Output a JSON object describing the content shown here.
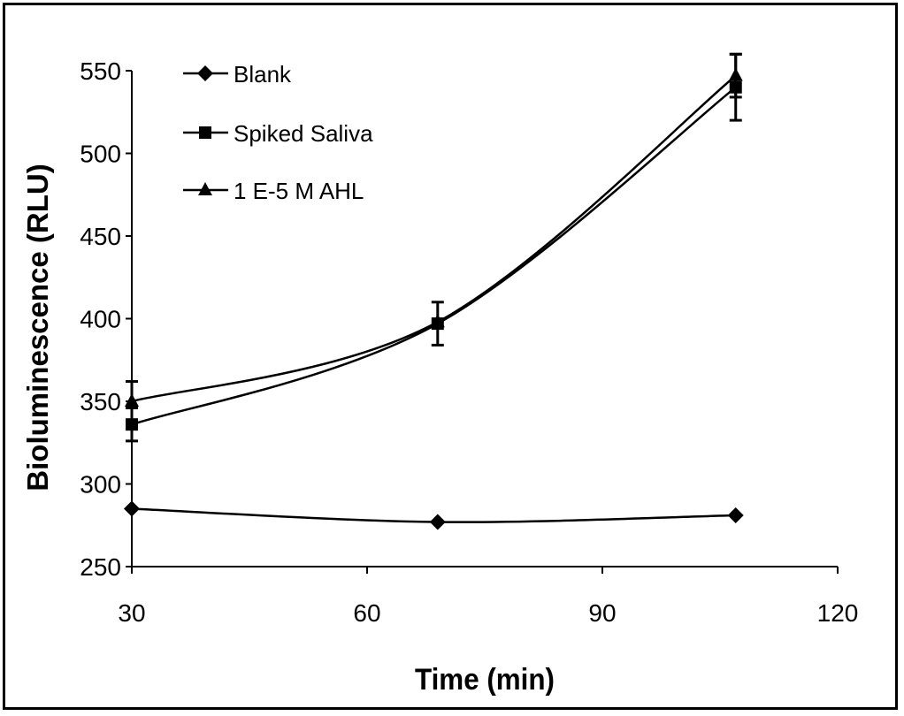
{
  "chart_data": {
    "type": "line",
    "title": "",
    "xlabel": "Time (min)",
    "ylabel": "Bioluminescence (RLU)",
    "xlim": [
      30,
      120
    ],
    "ylim": [
      250,
      550
    ],
    "xticks": [
      30,
      60,
      90,
      120
    ],
    "yticks": [
      250,
      300,
      350,
      400,
      450,
      500,
      550
    ],
    "grid": false,
    "legend_position": "top-left",
    "smooth_lines": true,
    "line_color": "#000000",
    "series": [
      {
        "name": "Blank",
        "marker": "diamond",
        "x": [
          30,
          69,
          107
        ],
        "y": [
          285,
          277,
          281
        ],
        "error": [
          0,
          0,
          0
        ]
      },
      {
        "name": "Spiked Saliva",
        "marker": "square",
        "x": [
          30,
          69,
          107
        ],
        "y": [
          336,
          397,
          540
        ],
        "error": [
          10,
          13,
          20
        ]
      },
      {
        "name": "1 E-5 M AHL",
        "marker": "triangle",
        "x": [
          30,
          69,
          107
        ],
        "y": [
          350,
          398,
          547
        ],
        "error": [
          12,
          0,
          13
        ]
      }
    ]
  }
}
